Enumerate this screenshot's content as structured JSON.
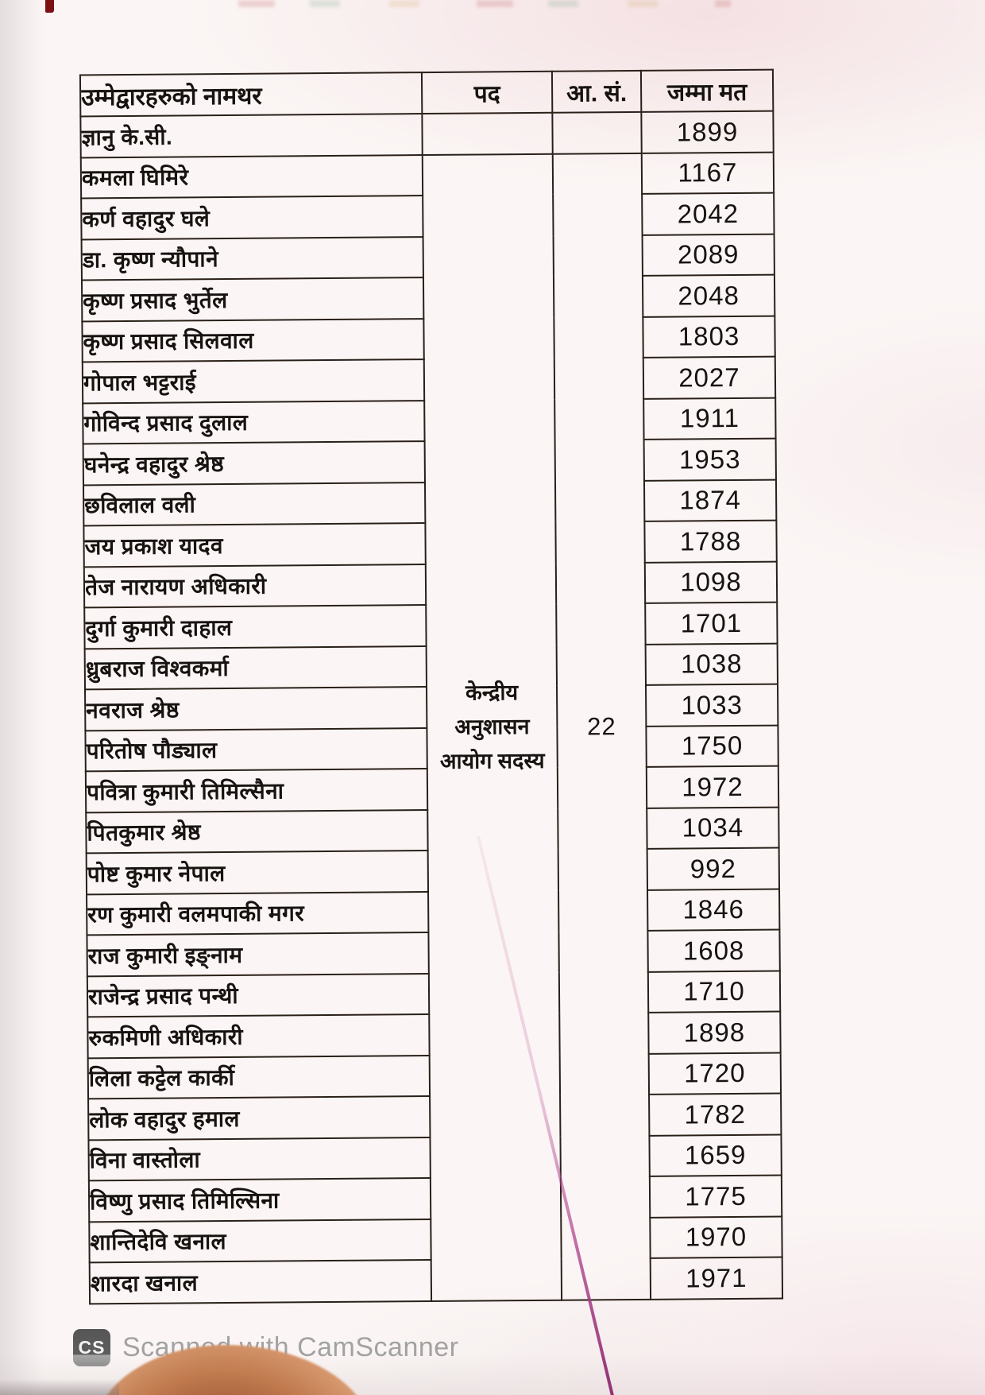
{
  "document": {
    "table": {
      "headers": {
        "name": "उम्मेद्वारहरुको नामथर",
        "position": "पद",
        "serial": "आ. सं.",
        "total_votes": "जम्मा मत"
      },
      "position_merged": "केन्द्रीय अनुशासन आयोग सदस्य",
      "position_lines": [
        "केन्द्रीय",
        "अनुशासन",
        "आयोग सदस्य"
      ],
      "serial_merged": "22",
      "rows": [
        {
          "name": "ज्ञानु के.सी.",
          "votes": "1899"
        },
        {
          "name": "कमला घिमिरे",
          "votes": "1167"
        },
        {
          "name": "कर्ण वहादुर घले",
          "votes": "2042"
        },
        {
          "name": "डा. कृष्ण न्यौपाने",
          "votes": "2089"
        },
        {
          "name": "कृष्ण प्रसाद भुर्तेल",
          "votes": "2048"
        },
        {
          "name": "कृष्ण प्रसाद सिलवाल",
          "votes": "1803"
        },
        {
          "name": "गोपाल भट्टराई",
          "votes": "2027"
        },
        {
          "name": "गोविन्द प्रसाद दुलाल",
          "votes": "1911"
        },
        {
          "name": "घनेन्द्र वहादुर श्रेष्ठ",
          "votes": "1953"
        },
        {
          "name": "छविलाल वली",
          "votes": "1874"
        },
        {
          "name": "जय प्रकाश यादव",
          "votes": "1788"
        },
        {
          "name": "तेज नारायण अधिकारी",
          "votes": "1098"
        },
        {
          "name": "दुर्गा कुमारी दाहाल",
          "votes": "1701"
        },
        {
          "name": "ध्रुबराज विश्वकर्मा",
          "votes": "1038"
        },
        {
          "name": "नवराज श्रेष्ठ",
          "votes": "1033"
        },
        {
          "name": "परितोष पौड्याल",
          "votes": "1750"
        },
        {
          "name": "पवित्रा कुमारी तिमिल्सैना",
          "votes": "1972"
        },
        {
          "name": "पितकुमार श्रेष्ठ",
          "votes": "1034"
        },
        {
          "name": "पोष्ट कुमार नेपाल",
          "votes": "992"
        },
        {
          "name": "रण कुमारी वलमपाकी मगर",
          "votes": "1846"
        },
        {
          "name": "राज कुमारी इङ्नाम",
          "votes": "1608"
        },
        {
          "name": "राजेन्द्र प्रसाद पन्थी",
          "votes": "1710"
        },
        {
          "name": "रुकमिणी अधिकारी",
          "votes": "1898"
        },
        {
          "name": "लिला कट्टेल कार्की",
          "votes": "1720"
        },
        {
          "name": "लोक वहादुर हमाल",
          "votes": "1782"
        },
        {
          "name": "विना वास्तोला",
          "votes": "1659"
        },
        {
          "name": "विष्णु प्रसाद तिमिल्सिना",
          "votes": "1775"
        },
        {
          "name": "शान्तिदेवि खनाल",
          "votes": "1970"
        },
        {
          "name": "शारदा खनाल",
          "votes": "1971"
        }
      ]
    },
    "footer": {
      "logo": "CS",
      "text": "Scanned with CamScanner"
    },
    "colors": {
      "ink": "#161310",
      "table_border": "#2a1f19",
      "paper": "#fbf6f5",
      "pink_mark": "#8f2f74",
      "footer_gray": "#a2a2a2"
    }
  }
}
